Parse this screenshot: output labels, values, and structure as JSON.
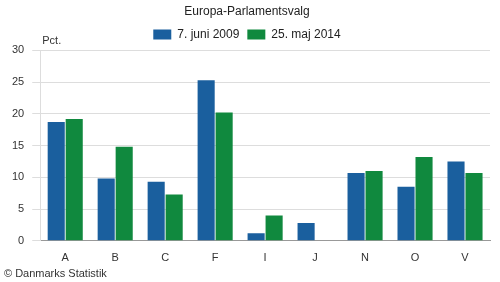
{
  "chart_data": {
    "type": "bar",
    "title": "Europa-Parlamentsvalg",
    "y_label": "Pct.",
    "source": "© Danmarks Statistik",
    "categories": [
      "A",
      "B",
      "C",
      "F",
      "I",
      "J",
      "N",
      "O",
      "V"
    ],
    "series": [
      {
        "name": "7. juni 2009",
        "color": "#1a5f9e",
        "values": [
          18.7,
          9.8,
          9.3,
          25.3,
          1.2,
          2.8,
          10.7,
          8.5,
          12.5
        ]
      },
      {
        "name": "25. maj 2014",
        "color": "#10893e",
        "values": [
          19.2,
          14.8,
          7.3,
          20.2,
          4.0,
          null,
          11.0,
          13.2,
          10.7
        ]
      }
    ],
    "ylim": [
      0,
      30
    ],
    "yticks": [
      0,
      5,
      10,
      15,
      20,
      25,
      30
    ],
    "grid": true,
    "legend": "top"
  }
}
